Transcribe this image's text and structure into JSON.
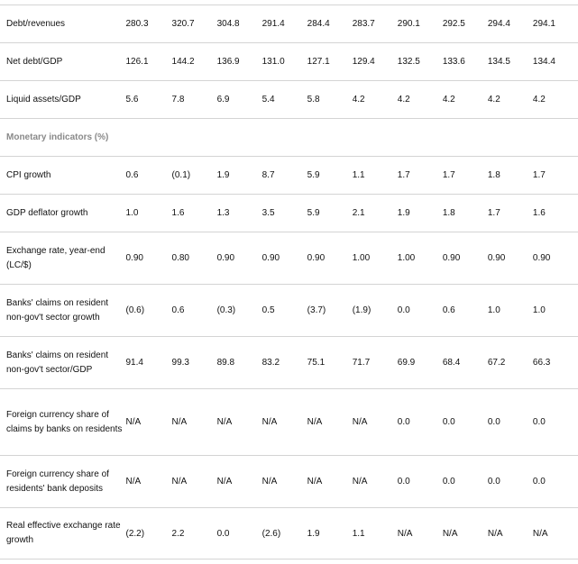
{
  "rows": [
    {
      "type": "data",
      "label": "Debt/revenues",
      "values": [
        "280.3",
        "320.7",
        "304.8",
        "291.4",
        "284.4",
        "283.7",
        "290.1",
        "292.5",
        "294.4",
        "294.1"
      ]
    },
    {
      "type": "data",
      "label": "Net debt/GDP",
      "values": [
        "126.1",
        "144.2",
        "136.9",
        "131.0",
        "127.1",
        "129.4",
        "132.5",
        "133.6",
        "134.5",
        "134.4"
      ]
    },
    {
      "type": "data",
      "label": "Liquid assets/GDP",
      "values": [
        "5.6",
        "7.8",
        "6.9",
        "5.4",
        "5.8",
        "4.2",
        "4.2",
        "4.2",
        "4.2",
        "4.2"
      ]
    },
    {
      "type": "section",
      "label": "Monetary indicators (%)"
    },
    {
      "type": "data",
      "label": "CPI growth",
      "values": [
        "0.6",
        "(0.1)",
        "1.9",
        "8.7",
        "5.9",
        "1.1",
        "1.7",
        "1.7",
        "1.8",
        "1.7"
      ]
    },
    {
      "type": "data",
      "label": "GDP deflator growth",
      "values": [
        "1.0",
        "1.6",
        "1.3",
        "3.5",
        "5.9",
        "2.1",
        "1.9",
        "1.8",
        "1.7",
        "1.6"
      ]
    },
    {
      "type": "data",
      "label": "Exchange rate, year-end (LC/$)",
      "values": [
        "0.90",
        "0.80",
        "0.90",
        "0.90",
        "0.90",
        "1.00",
        "1.00",
        "0.90",
        "0.90",
        "0.90"
      ]
    },
    {
      "type": "data",
      "label": "Banks' claims on resident non-gov't sector growth",
      "values": [
        "(0.6)",
        "0.6",
        "(0.3)",
        "0.5",
        "(3.7)",
        "(1.9)",
        "0.0",
        "0.6",
        "1.0",
        "1.0"
      ]
    },
    {
      "type": "data",
      "label": "Banks' claims on resident non-gov't sector/GDP",
      "values": [
        "91.4",
        "99.3",
        "89.8",
        "83.2",
        "75.1",
        "71.7",
        "69.9",
        "68.4",
        "67.2",
        "66.3"
      ]
    },
    {
      "type": "data",
      "label": "Foreign currency share of claims by banks on residents",
      "values": [
        "N/A",
        "N/A",
        "N/A",
        "N/A",
        "N/A",
        "N/A",
        "0.0",
        "0.0",
        "0.0",
        "0.0"
      ]
    },
    {
      "type": "data",
      "label": "Foreign currency share of residents' bank deposits",
      "values": [
        "N/A",
        "N/A",
        "N/A",
        "N/A",
        "N/A",
        "N/A",
        "0.0",
        "0.0",
        "0.0",
        "0.0"
      ]
    },
    {
      "type": "data",
      "label": "Real effective exchange rate growth",
      "values": [
        "(2.2)",
        "2.2",
        "0.0",
        "(2.6)",
        "1.9",
        "1.1",
        "N/A",
        "N/A",
        "N/A",
        "N/A"
      ]
    }
  ]
}
